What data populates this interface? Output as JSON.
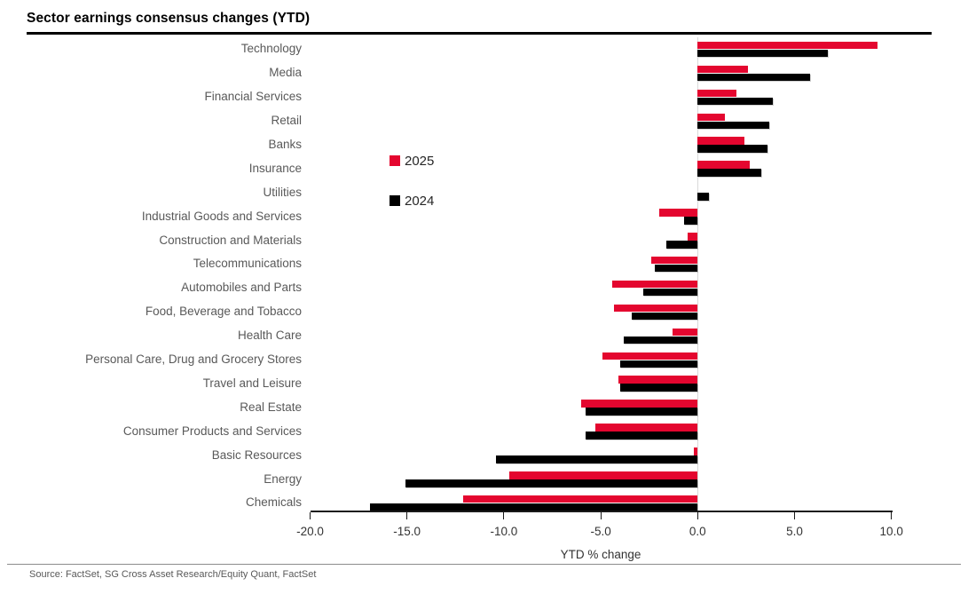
{
  "page": {
    "title": "Sector earnings consensus changes (YTD)",
    "source": "Source: FactSet, SG Cross Asset Research/Equity Quant, FactSet"
  },
  "chart_data": {
    "type": "bar",
    "orientation": "horizontal",
    "title": "Sector earnings consensus changes (YTD)",
    "xlabel": "YTD % change",
    "xlim": [
      -20.0,
      10.0
    ],
    "xticks": [
      -20.0,
      -15.0,
      -10.0,
      -5.0,
      0.0,
      5.0,
      10.0
    ],
    "xtick_labels": [
      "-20.0",
      "-15.0",
      "-10.0",
      "-5.0",
      "0.0",
      "5.0",
      "10.0"
    ],
    "grid": "zero-baseline-only",
    "legend_position": "inside-upper-left",
    "categories": [
      "Technology",
      "Media",
      "Financial Services",
      "Retail",
      "Banks",
      "Insurance",
      "Utilities",
      "Industrial Goods and Services",
      "Construction and Materials",
      "Telecommunications",
      "Automobiles and Parts",
      "Food, Beverage and Tobacco",
      "Health Care",
      "Personal Care, Drug and Grocery Stores",
      "Travel and Leisure",
      "Real Estate",
      "Consumer Products and Services",
      "Basic Resources",
      "Energy",
      "Chemicals"
    ],
    "series": [
      {
        "name": "2025",
        "color": "#e4062f",
        "values": [
          9.3,
          2.6,
          2.0,
          1.4,
          2.4,
          2.7,
          0.0,
          -2.0,
          -0.5,
          -2.4,
          -4.4,
          -4.3,
          -1.3,
          -4.9,
          -4.1,
          -6.0,
          -5.3,
          -0.2,
          -9.7,
          -12.1
        ]
      },
      {
        "name": "2024",
        "color": "#000000",
        "values": [
          6.7,
          5.8,
          3.9,
          3.7,
          3.6,
          3.3,
          0.6,
          -0.7,
          -1.6,
          -2.2,
          -2.8,
          -3.4,
          -3.8,
          -4.0,
          -4.0,
          -5.8,
          -5.8,
          -10.4,
          -15.1,
          -16.9
        ]
      }
    ]
  },
  "colors": {
    "accent_red": "#e4062f",
    "bar_black": "#000000",
    "label_gray": "#595959",
    "axis_gray": "#333333",
    "zero_line": "#d9d9d9"
  }
}
